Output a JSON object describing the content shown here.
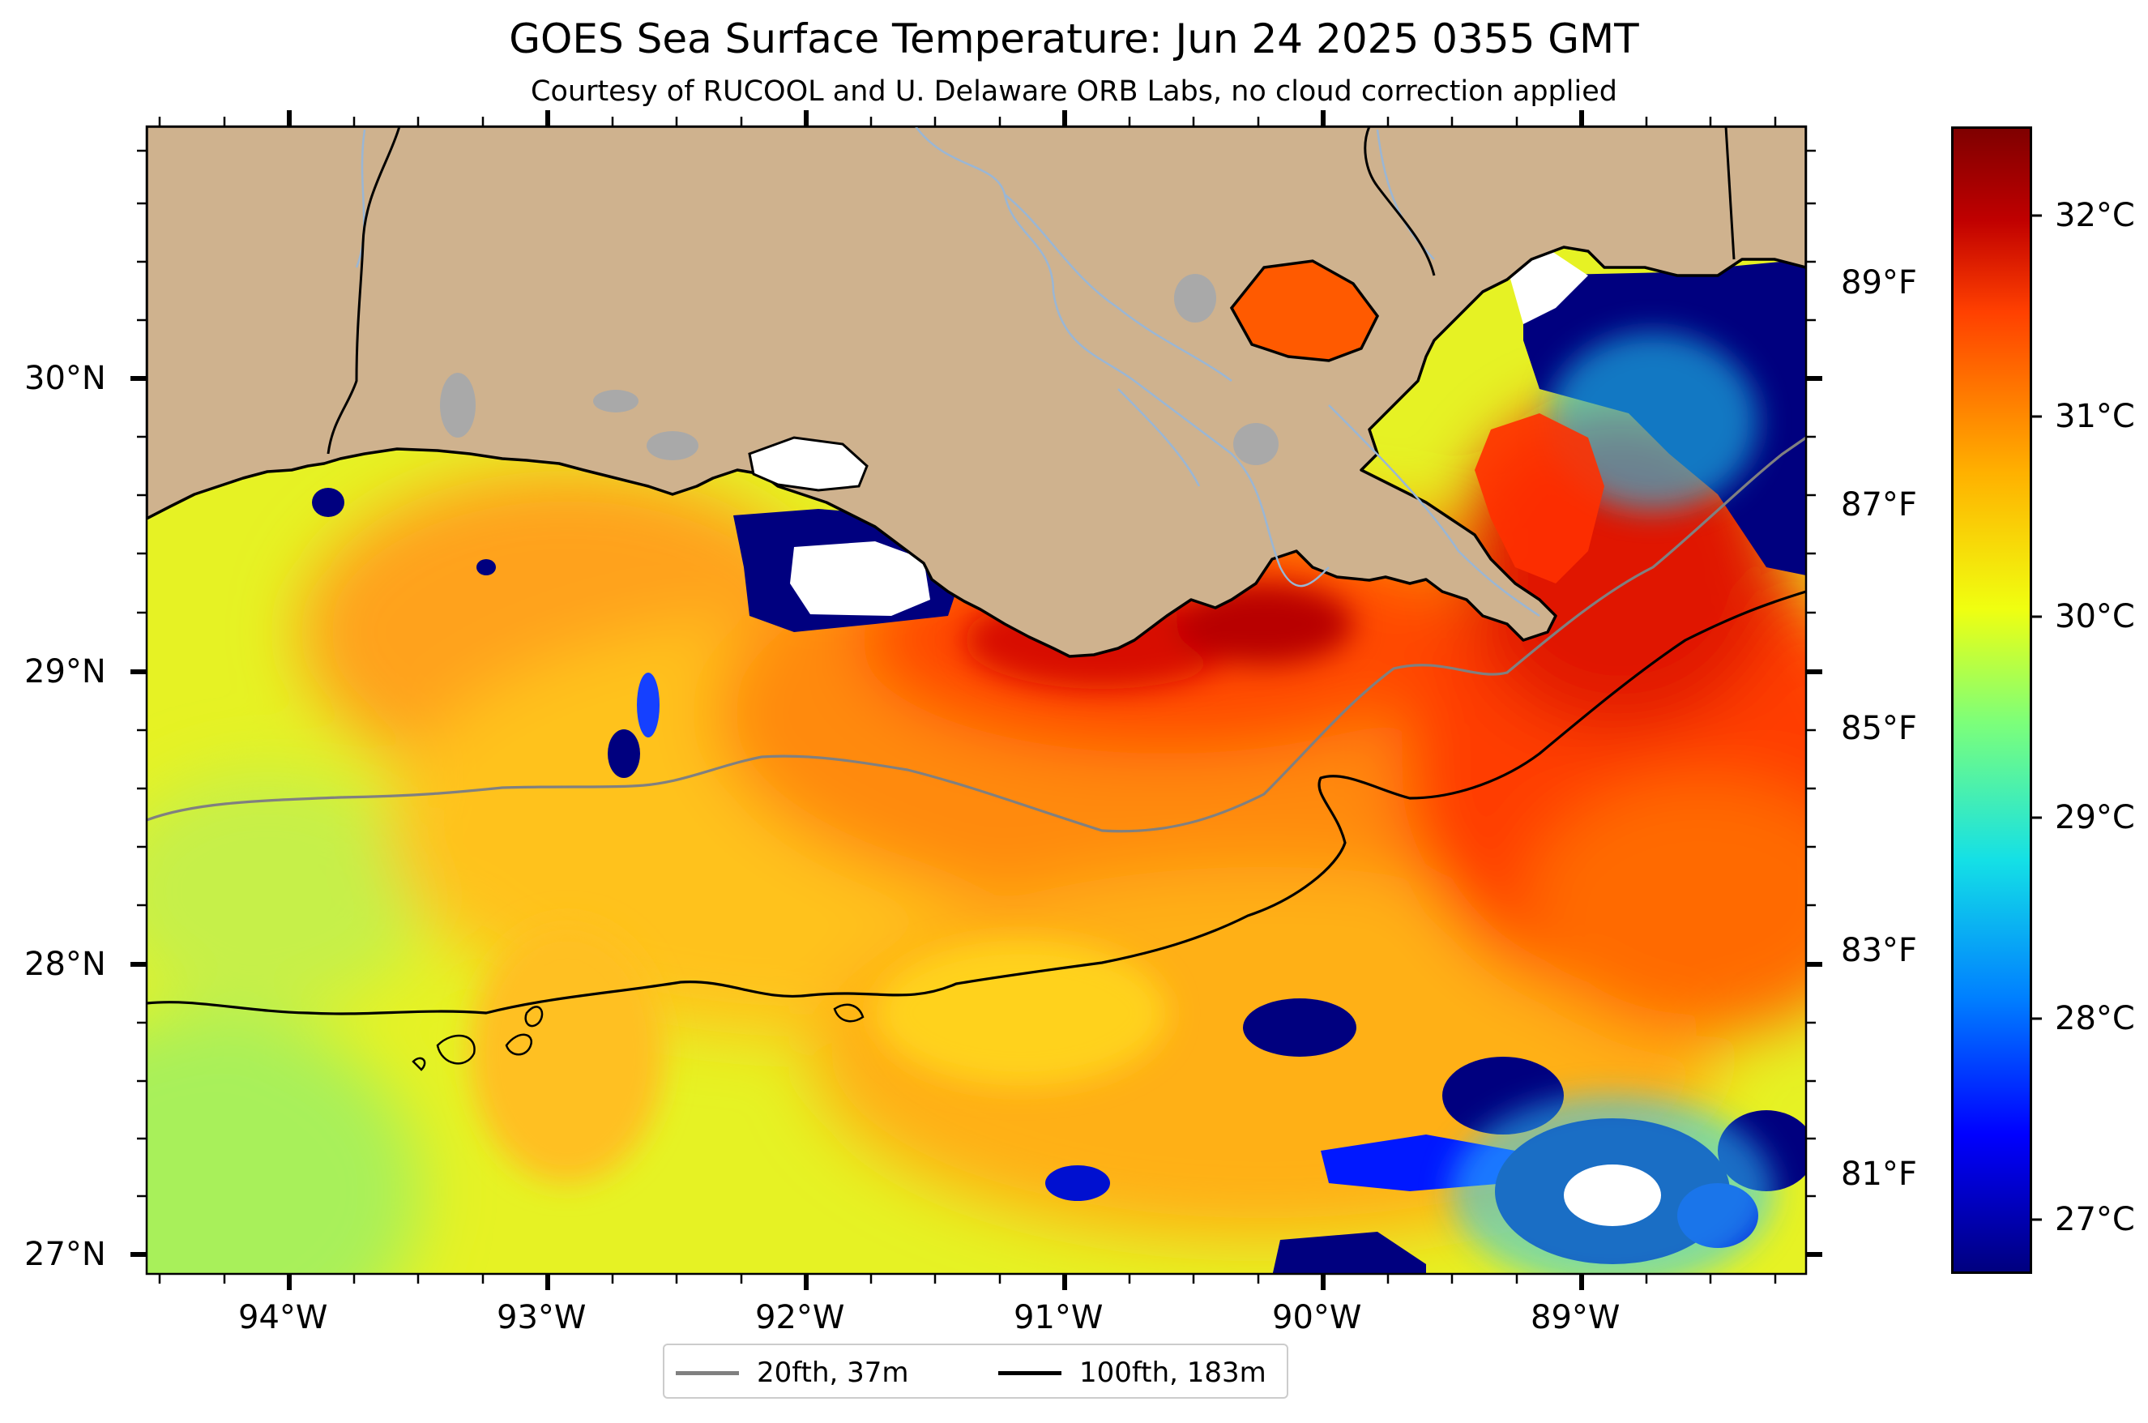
{
  "title": "GOES Sea Surface Temperature: Jun 24 2025 0355 GMT",
  "subtitle": "Courtesy of RUCOOL and U. Delaware ORB Labs, no cloud correction applied",
  "map": {
    "region": "Northern Gulf of Mexico (Louisiana coast)",
    "longitude_labels": [
      "94°W",
      "93°W",
      "92°W",
      "91°W",
      "90°W",
      "89°W"
    ],
    "latitude_labels": [
      "30°N",
      "29°N",
      "28°N",
      "27°N"
    ],
    "colors": {
      "land": "#cfb28e",
      "water_bodies": "#a9a9a9",
      "no_data": "#ffffff"
    }
  },
  "colorbar": {
    "celsius_labels": [
      "32°C",
      "31°C",
      "30°C",
      "29°C",
      "28°C",
      "27°C"
    ],
    "fahrenheit_labels": [
      "89°F",
      "87°F",
      "85°F",
      "83°F",
      "81°F"
    ],
    "colormap": "jet"
  },
  "legend": {
    "items": [
      {
        "label": "20fth, 37m",
        "color": "#808080"
      },
      {
        "label": "100fth, 183m",
        "color": "#000000"
      }
    ]
  }
}
